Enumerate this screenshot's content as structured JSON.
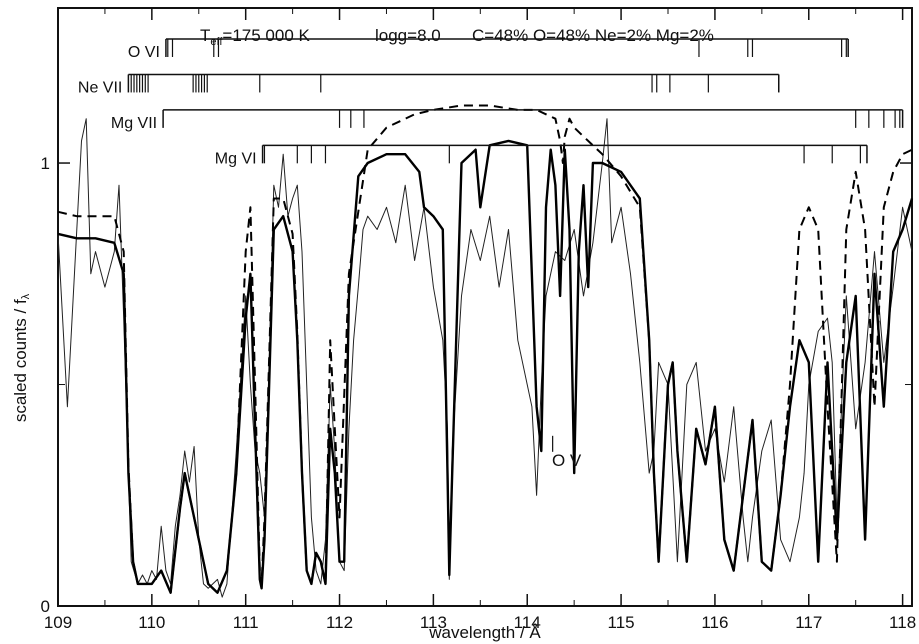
{
  "chart_data": {
    "type": "line",
    "title_parts": {
      "teff_symbol": "T",
      "teff_sub": "eff",
      "teff_value": "=175 000 K",
      "logg": "logg=8.0",
      "abundances": "C=48% O=48% Ne=2% Mg=2%"
    },
    "xlabel": "wavelength / Å",
    "ylabel_main": "scaled counts / f",
    "ylabel_sub": "λ",
    "xlim": [
      109,
      118.1
    ],
    "ylim": [
      0,
      1.35
    ],
    "x_ticks": [
      109,
      110,
      111,
      112,
      113,
      114,
      115,
      116,
      117,
      118
    ],
    "y_ticks": [
      {
        "value": 0,
        "label": "0"
      },
      {
        "value": 1,
        "label": "1"
      }
    ],
    "grid": false,
    "annotations": [
      {
        "text": "O V",
        "x": 114.42,
        "y": 0.33
      }
    ],
    "line_ids": [
      {
        "ion": "O VI",
        "level": 1.28,
        "x_start": 110.15,
        "x_end": 117.42,
        "ticks": [
          110.17,
          110.22,
          110.66,
          110.71,
          115.83,
          116.35,
          116.4,
          117.35,
          117.4
        ]
      },
      {
        "ion": "Ne VII",
        "level": 1.2,
        "x_start": 109.75,
        "x_end": 116.68,
        "ticks": [
          109.78,
          109.81,
          109.84,
          109.87,
          109.9,
          109.93,
          109.96,
          110.44,
          110.47,
          110.5,
          110.53,
          110.56,
          110.59,
          111.15,
          111.8,
          115.33,
          115.38,
          115.52,
          115.93
        ]
      },
      {
        "ion": "Mg VII",
        "level": 1.12,
        "x_start": 110.12,
        "x_end": 118.0,
        "ticks": [
          112.0,
          112.12,
          112.26,
          117.5,
          117.64,
          117.8,
          117.92,
          117.97
        ]
      },
      {
        "ion": "Mg VI",
        "level": 1.04,
        "x_start": 111.18,
        "x_end": 117.62,
        "ticks": [
          111.2,
          111.55,
          111.7,
          111.85,
          113.17,
          116.95,
          117.25,
          117.55
        ]
      }
    ],
    "series": [
      {
        "style": "observation-thin",
        "x": [
          109.0,
          109.1,
          109.2,
          109.25,
          109.3,
          109.35,
          109.4,
          109.5,
          109.6,
          109.65,
          109.7,
          109.75,
          109.78,
          109.85,
          109.9,
          109.95,
          110.0,
          110.05,
          110.1,
          110.15,
          110.2,
          110.25,
          110.3,
          110.35,
          110.4,
          110.45,
          110.5,
          110.55,
          110.6,
          110.65,
          110.7,
          110.75,
          110.8,
          110.9,
          111.0,
          111.05,
          111.1,
          111.15,
          111.2,
          111.25,
          111.3,
          111.35,
          111.4,
          111.45,
          111.5,
          111.55,
          111.6,
          111.65,
          111.7,
          111.75,
          111.8,
          111.85,
          111.9,
          111.95,
          112.0,
          112.05,
          112.1,
          112.15,
          112.2,
          112.25,
          112.3,
          112.4,
          112.5,
          112.6,
          112.7,
          112.8,
          112.9,
          113.0,
          113.1,
          113.15,
          113.17,
          113.2,
          113.3,
          113.4,
          113.5,
          113.6,
          113.7,
          113.8,
          113.9,
          114.0,
          114.05,
          114.1,
          114.15,
          114.2,
          114.3,
          114.4,
          114.5,
          114.6,
          114.7,
          114.8,
          114.85,
          114.9,
          115.0,
          115.1,
          115.2,
          115.3,
          115.35,
          115.4,
          115.5,
          115.55,
          115.6,
          115.7,
          115.8,
          115.9,
          116.0,
          116.1,
          116.2,
          116.3,
          116.35,
          116.4,
          116.5,
          116.6,
          116.7,
          116.8,
          116.9,
          116.95,
          117.0,
          117.1,
          117.2,
          117.25,
          117.3,
          117.4,
          117.5,
          117.6,
          117.7,
          117.8,
          117.9,
          118.0,
          118.1
        ],
        "y": [
          0.84,
          0.45,
          0.85,
          1.05,
          1.1,
          0.75,
          0.8,
          0.72,
          0.8,
          0.95,
          0.65,
          0.3,
          0.1,
          0.05,
          0.07,
          0.05,
          0.08,
          0.06,
          0.18,
          0.08,
          0.05,
          0.18,
          0.25,
          0.35,
          0.28,
          0.36,
          0.15,
          0.05,
          0.04,
          0.05,
          0.06,
          0.02,
          0.05,
          0.35,
          0.7,
          0.5,
          0.35,
          0.3,
          0.2,
          0.55,
          0.95,
          0.9,
          1.02,
          0.88,
          0.92,
          0.95,
          0.8,
          0.5,
          0.2,
          0.08,
          0.05,
          0.15,
          0.5,
          0.35,
          0.1,
          0.08,
          0.4,
          0.6,
          0.72,
          0.85,
          0.88,
          0.85,
          0.9,
          0.82,
          0.95,
          0.78,
          0.9,
          0.72,
          0.6,
          0.4,
          0.06,
          0.35,
          0.7,
          0.85,
          0.78,
          0.88,
          0.72,
          0.85,
          0.6,
          0.5,
          0.45,
          0.25,
          0.5,
          0.7,
          0.8,
          0.78,
          0.85,
          0.7,
          0.82,
          1.0,
          1.1,
          0.82,
          0.9,
          0.75,
          0.55,
          0.3,
          0.35,
          0.55,
          0.5,
          0.3,
          0.1,
          0.5,
          0.55,
          0.35,
          0.4,
          0.28,
          0.45,
          0.2,
          0.1,
          0.2,
          0.35,
          0.42,
          0.15,
          0.1,
          0.2,
          0.3,
          0.5,
          0.62,
          0.65,
          0.55,
          0.2,
          0.7,
          0.4,
          0.55,
          0.8,
          0.55,
          0.72,
          0.9,
          0.8
        ]
      },
      {
        "style": "model-solid",
        "x": [
          109.0,
          109.2,
          109.4,
          109.6,
          109.7,
          109.75,
          109.8,
          109.85,
          109.9,
          110.0,
          110.1,
          110.2,
          110.3,
          110.35,
          110.4,
          110.5,
          110.6,
          110.7,
          110.8,
          110.9,
          111.0,
          111.05,
          111.1,
          111.15,
          111.17,
          111.2,
          111.3,
          111.4,
          111.5,
          111.55,
          111.6,
          111.65,
          111.7,
          111.75,
          111.8,
          111.85,
          111.9,
          111.95,
          112.0,
          112.05,
          112.1,
          112.2,
          112.3,
          112.5,
          112.7,
          112.85,
          112.9,
          113.0,
          113.1,
          113.15,
          113.17,
          113.2,
          113.3,
          113.45,
          113.5,
          113.6,
          113.8,
          114.0,
          114.1,
          114.15,
          114.2,
          114.25,
          114.3,
          114.35,
          114.4,
          114.45,
          114.5,
          114.55,
          114.6,
          114.65,
          114.7,
          114.8,
          115.0,
          115.2,
          115.3,
          115.35,
          115.4,
          115.5,
          115.55,
          115.6,
          115.7,
          115.8,
          115.9,
          116.0,
          116.1,
          116.2,
          116.3,
          116.4,
          116.5,
          116.6,
          116.7,
          116.8,
          116.9,
          117.0,
          117.1,
          117.2,
          117.3,
          117.4,
          117.5,
          117.6,
          117.7,
          117.8,
          117.9,
          118.0,
          118.1
        ],
        "y": [
          0.84,
          0.83,
          0.83,
          0.82,
          0.75,
          0.3,
          0.1,
          0.05,
          0.05,
          0.05,
          0.08,
          0.03,
          0.22,
          0.3,
          0.25,
          0.15,
          0.05,
          0.03,
          0.08,
          0.3,
          0.65,
          0.75,
          0.4,
          0.06,
          0.04,
          0.15,
          0.85,
          0.88,
          0.8,
          0.6,
          0.3,
          0.08,
          0.05,
          0.12,
          0.1,
          0.05,
          0.4,
          0.3,
          0.1,
          0.1,
          0.7,
          0.97,
          1.0,
          1.02,
          1.02,
          0.98,
          0.9,
          0.88,
          0.85,
          0.3,
          0.07,
          0.3,
          1.0,
          1.03,
          0.9,
          1.04,
          1.05,
          1.04,
          0.45,
          0.35,
          0.9,
          1.03,
          0.95,
          0.7,
          1.03,
          0.85,
          0.3,
          0.8,
          0.95,
          0.72,
          1.0,
          1.0,
          0.98,
          0.92,
          0.6,
          0.3,
          0.1,
          0.5,
          0.55,
          0.35,
          0.1,
          0.4,
          0.32,
          0.45,
          0.15,
          0.08,
          0.25,
          0.42,
          0.1,
          0.08,
          0.25,
          0.45,
          0.6,
          0.55,
          0.1,
          0.55,
          0.15,
          0.55,
          0.7,
          0.15,
          0.75,
          0.45,
          0.8,
          0.85,
          0.92
        ]
      },
      {
        "style": "model-dashed",
        "x": [
          109.0,
          109.2,
          109.4,
          109.6,
          109.7,
          109.75,
          109.8,
          109.85,
          109.9,
          110.0,
          110.1,
          110.2,
          110.3,
          110.35,
          110.4,
          110.5,
          110.6,
          110.7,
          110.8,
          110.9,
          111.0,
          111.05,
          111.1,
          111.15,
          111.17,
          111.2,
          111.3,
          111.4,
          111.5,
          111.55,
          111.6,
          111.65,
          111.7,
          111.75,
          111.8,
          111.85,
          111.9,
          111.95,
          112.0,
          112.1,
          112.3,
          112.5,
          112.8,
          113.0,
          113.3,
          113.6,
          113.9,
          114.1,
          114.2,
          114.3,
          114.35,
          114.38,
          114.4,
          114.45,
          114.5,
          114.6,
          114.8,
          115.0,
          115.2,
          115.3,
          115.35,
          115.4,
          115.5,
          115.55,
          115.6,
          115.7,
          115.8,
          115.9,
          116.0,
          116.1,
          116.2,
          116.3,
          116.4,
          116.5,
          116.6,
          116.7,
          116.8,
          116.9,
          117.0,
          117.1,
          117.2,
          117.3,
          117.4,
          117.5,
          117.6,
          117.7,
          117.8,
          117.9,
          118.0,
          118.1
        ],
        "y": [
          0.89,
          0.88,
          0.88,
          0.88,
          0.8,
          0.32,
          0.1,
          0.05,
          0.05,
          0.05,
          0.08,
          0.03,
          0.22,
          0.3,
          0.25,
          0.15,
          0.05,
          0.03,
          0.08,
          0.3,
          0.8,
          0.9,
          0.5,
          0.08,
          0.05,
          0.2,
          0.92,
          0.92,
          0.84,
          0.62,
          0.3,
          0.08,
          0.05,
          0.12,
          0.1,
          0.05,
          0.6,
          0.4,
          0.2,
          0.75,
          1.03,
          1.08,
          1.11,
          1.12,
          1.13,
          1.13,
          1.12,
          1.12,
          1.11,
          1.1,
          1.05,
          1.0,
          1.06,
          1.1,
          1.08,
          1.06,
          1.02,
          0.97,
          0.9,
          0.6,
          0.3,
          0.1,
          0.5,
          0.55,
          0.35,
          0.1,
          0.4,
          0.32,
          0.45,
          0.15,
          0.08,
          0.25,
          0.42,
          0.1,
          0.08,
          0.25,
          0.5,
          0.85,
          0.9,
          0.85,
          0.45,
          0.1,
          0.85,
          0.98,
          0.85,
          0.45,
          0.9,
          0.98,
          1.02,
          1.03
        ]
      }
    ]
  }
}
